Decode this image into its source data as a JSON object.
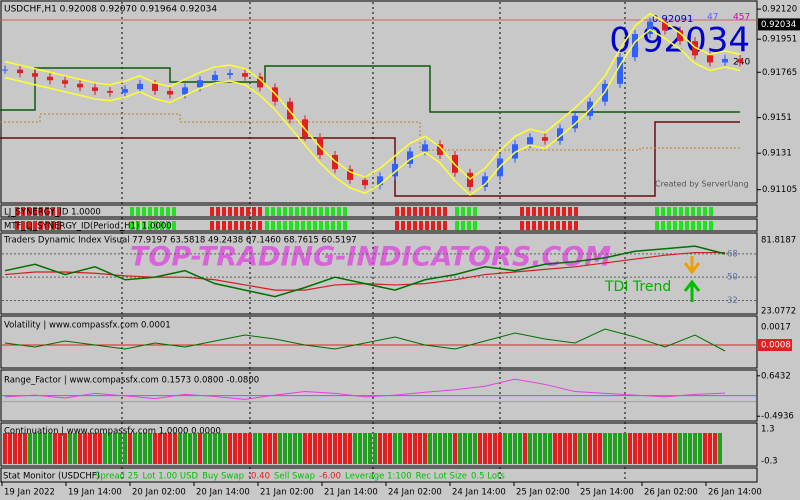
{
  "header": {
    "symbol": "USDCHF,H1  0.92008 0.92070 0.91964 0.92034"
  },
  "price_panel": {
    "ylim": [
      0.9103,
      0.9216
    ],
    "yticks": [
      {
        "value": 0.9212,
        "label": "0.92120"
      },
      0.91951,
      0.91765,
      0.9151,
      0.9131,
      0.91105
    ],
    "current": {
      "value": 0.92034,
      "label": "0.92034"
    },
    "big_price": "0.92034",
    "small_price": "0.92091",
    "counter_a": "47",
    "counter_b": "457",
    "counter_c": "240",
    "credit": "Created by ServerUang",
    "close": [
      0.9178,
      0.9176,
      0.9174,
      0.9172,
      0.917,
      0.9168,
      0.9166,
      0.9165,
      0.9167,
      0.917,
      0.9166,
      0.9164,
      0.9168,
      0.9172,
      0.9175,
      0.9176,
      0.9174,
      0.9168,
      0.916,
      0.915,
      0.914,
      0.913,
      0.9122,
      0.9116,
      0.9113,
      0.9118,
      0.9125,
      0.9132,
      0.9136,
      0.913,
      0.912,
      0.9112,
      0.9118,
      0.9128,
      0.9136,
      0.914,
      0.9138,
      0.9145,
      0.9152,
      0.916,
      0.917,
      0.9185,
      0.9198,
      0.9205,
      0.92,
      0.9194,
      0.9186,
      0.9182,
      0.9184,
      0.9182
    ]
  },
  "synergy": {
    "row1": "LJ_SYNERGY_ID 1.0000",
    "row2": "MTF_LJ_SYNERGY_ID(Period_H1) 1.0000"
  },
  "tdi": {
    "label": "Traders Dynamic Index Visual 77.9197 63.5818 49.2438 67.1460 68.7615 60.5197",
    "ylim": [
      23.0772,
      81.8187
    ],
    "yticks": [
      68,
      50,
      32
    ],
    "top_label": "81.8187",
    "bottom_label": "23.0772",
    "trend": "TDI Trend",
    "price_line": [
      55,
      60,
      52,
      58,
      48,
      50,
      55,
      45,
      40,
      35,
      42,
      50,
      45,
      40,
      48,
      52,
      58,
      55,
      60,
      62,
      65,
      70,
      72,
      74,
      68
    ],
    "signal_line": [
      52,
      54,
      54,
      53,
      51,
      50,
      50,
      48,
      44,
      40,
      40,
      44,
      45,
      44,
      45,
      48,
      52,
      54,
      56,
      58,
      61,
      64,
      67,
      69,
      69
    ]
  },
  "volatility": {
    "label": "Volatility | www.compassfx.com  0.0001",
    "ylim": [
      0,
      0.00215
    ],
    "yticks": [
      0.0017,
      0.0008
    ],
    "values": [
      0.0009,
      0.0007,
      0.001,
      0.0008,
      0.0006,
      0.0009,
      0.0007,
      0.001,
      0.0013,
      0.0011,
      0.0008,
      0.0006,
      0.0009,
      0.0012,
      0.0008,
      0.0006,
      0.001,
      0.0014,
      0.0011,
      0.0009,
      0.0016,
      0.0012,
      0.0007,
      0.0013,
      0.0005
    ]
  },
  "range_factor": {
    "label": "Range_Factor | www.compassfx.com   0.1573 0.0800 -0.0800",
    "ylim": [
      -0.6,
      0.75
    ],
    "yticks": [
      0.6432,
      -0.4936
    ],
    "values": [
      0.05,
      0.1,
      0.02,
      0.15,
      0.08,
      0,
      0.12,
      0.06,
      -0.02,
      0.1,
      0.2,
      0.15,
      0.05,
      0.1,
      0.18,
      0.25,
      0.35,
      0.55,
      0.4,
      0.2,
      0.15,
      0.1,
      0.05,
      0.12,
      0.1573
    ]
  },
  "continuation": {
    "label": "Continuation | www.compassfx.com  1.0000 0.0000",
    "top": "1.3",
    "bottom": "-0.3"
  },
  "stat_monitor": {
    "title": "Stat Monitor (USDCHF)",
    "items": [
      "Spread 25",
      "Lot 1.00 USD",
      "Buy Swap",
      "-0.40",
      "Sell Swap",
      "-6.00",
      "Leverage 1:100",
      "Rec Lot Size",
      "0.5 Lots"
    ]
  },
  "watermark": "TOP-TRADING-INDICATORS.COM",
  "time_axis": [
    "19 Jan 2022",
    "19 Jan 14:00",
    "20 Jan 02:00",
    "20 Jan 14:00",
    "21 Jan 02:00",
    "21 Jan 14:00",
    "24 Jan 02:00",
    "24 Jan 14:00",
    "25 Jan 02:00",
    "25 Jan 14:00",
    "26 Jan 02:00",
    "26 Jan 14:00"
  ]
}
